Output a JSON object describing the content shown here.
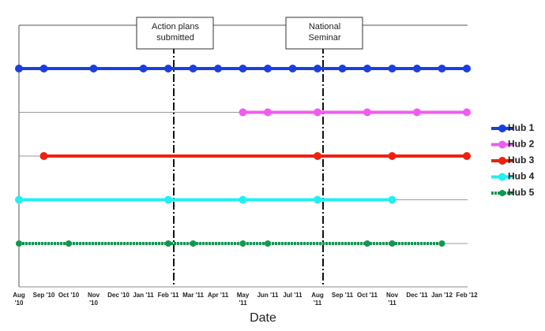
{
  "chart_data": {
    "type": "timeline",
    "x_label": "Date",
    "categories": [
      "Aug '10",
      "Sep '10",
      "Oct '10",
      "Nov '10",
      "Dec '10",
      "Jan '11",
      "Feb '11",
      "Mar '11",
      "Apr '11",
      "May '11",
      "Jun '11",
      "Jul '11",
      "Aug '11",
      "Sep '11",
      "Oct '11",
      "Nov '11",
      "Dec '11",
      "Jan '12",
      "Feb '12"
    ],
    "annotations": [
      {
        "lines": [
          "Action plans",
          "submitted"
        ],
        "date": "Feb '11"
      },
      {
        "lines": [
          "National",
          "Seminar"
        ],
        "date": "Aug '11"
      }
    ],
    "legend": "right",
    "series": [
      {
        "name": "Hub 1",
        "color": "#1a3fe0",
        "dates": [
          "Aug '10",
          "Sep '10",
          "Nov '10",
          "Jan '11",
          "Feb '11",
          "Mar '11",
          "Apr '11",
          "May '11",
          "Jun '11",
          "Jul '11",
          "Aug '11",
          "Sep '11",
          "Oct '11",
          "Nov '11",
          "Dec '11",
          "Jan '12",
          "Feb '12"
        ]
      },
      {
        "name": "Hub 2",
        "color": "#f05cf0",
        "dates": [
          "May '11",
          "Jun '11",
          "Aug '11",
          "Oct '11",
          "Dec '11",
          "Feb '12"
        ]
      },
      {
        "name": "Hub 3",
        "color": "#f02010",
        "dates": [
          "Sep '10",
          "Aug '11",
          "Nov '11",
          "Feb '12"
        ]
      },
      {
        "name": "Hub 4",
        "color": "#20f0f0",
        "dates": [
          "Aug '10",
          "Feb '11",
          "May '11",
          "Aug '11",
          "Nov '11"
        ]
      },
      {
        "name": "Hub 5",
        "color": "#109850",
        "dashed": true,
        "dates": [
          "Aug '10",
          "Oct '10",
          "Feb '11",
          "Mar '11",
          "May '11",
          "Jun '11",
          "Oct '11",
          "Nov '11",
          "Jan '12"
        ]
      }
    ]
  }
}
